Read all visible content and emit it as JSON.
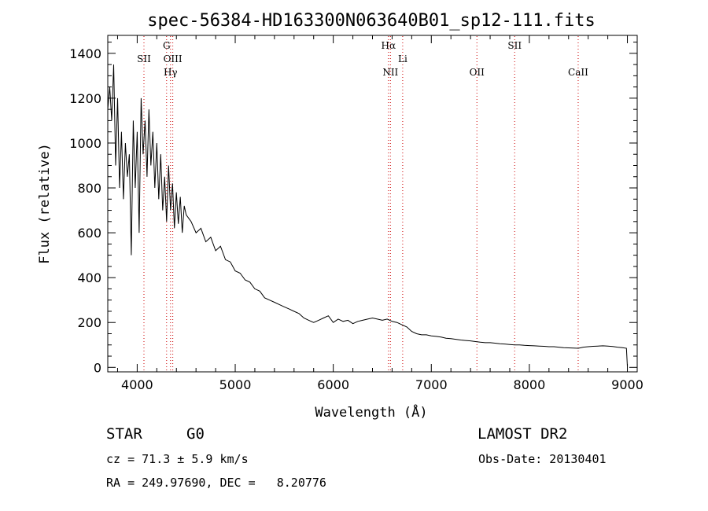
{
  "chart_data": {
    "type": "line",
    "title": "spec-56384-HD163300N063640B01_sp12-111.fits",
    "xlabel": "Wavelength (Å)",
    "ylabel": "Flux (relative)",
    "xlim": [
      3700,
      9100
    ],
    "ylim": [
      -20,
      1480
    ],
    "xticks": [
      4000,
      5000,
      6000,
      7000,
      8000,
      9000
    ],
    "yticks": [
      0,
      200,
      400,
      600,
      800,
      1000,
      1200,
      1400
    ],
    "grid": false,
    "line_color": "#000000",
    "marker_color": "#cc0000",
    "series": [
      {
        "x": [
          3700,
          3720,
          3740,
          3760,
          3780,
          3800,
          3820,
          3840,
          3860,
          3880,
          3900,
          3920,
          3940,
          3960,
          3980,
          4000,
          4020,
          4040,
          4060,
          4080,
          4100,
          4120,
          4140,
          4160,
          4180,
          4200,
          4220,
          4240,
          4260,
          4280,
          4300,
          4320,
          4340,
          4360,
          4380,
          4400,
          4420,
          4440,
          4460,
          4480,
          4500,
          4550,
          4600,
          4650,
          4700,
          4750,
          4800,
          4850,
          4900,
          4950,
          5000,
          5050,
          5100,
          5150,
          5200,
          5250,
          5300,
          5350,
          5400,
          5450,
          5500,
          5550,
          5600,
          5650,
          5700,
          5750,
          5800,
          5850,
          5900,
          5950,
          6000,
          6050,
          6100,
          6150,
          6200,
          6250,
          6300,
          6350,
          6400,
          6450,
          6500,
          6550,
          6600,
          6650,
          6700,
          6750,
          6800,
          6850,
          6900,
          6950,
          7000,
          7050,
          7100,
          7150,
          7200,
          7250,
          7300,
          7350,
          7400,
          7450,
          7500,
          7550,
          7600,
          7650,
          7700,
          7750,
          7800,
          7850,
          7900,
          7950,
          8000,
          8050,
          8100,
          8150,
          8200,
          8250,
          8300,
          8350,
          8400,
          8450,
          8500,
          8550,
          8600,
          8650,
          8700,
          8750,
          8800,
          8850,
          8900,
          8950,
          8990,
          9000
        ],
        "y": [
          1150,
          1250,
          1100,
          1350,
          900,
          1200,
          800,
          1050,
          750,
          1000,
          850,
          950,
          500,
          1100,
          800,
          1050,
          600,
          1200,
          950,
          1100,
          850,
          1150,
          900,
          1050,
          800,
          1000,
          750,
          950,
          700,
          850,
          650,
          900,
          700,
          820,
          620,
          780,
          640,
          760,
          600,
          720,
          680,
          650,
          600,
          620,
          560,
          580,
          520,
          540,
          480,
          470,
          430,
          420,
          390,
          380,
          350,
          340,
          310,
          300,
          290,
          280,
          270,
          260,
          250,
          240,
          220,
          210,
          200,
          210,
          220,
          230,
          200,
          215,
          205,
          210,
          195,
          205,
          210,
          215,
          220,
          215,
          210,
          215,
          205,
          200,
          190,
          180,
          160,
          150,
          145,
          145,
          140,
          138,
          135,
          130,
          128,
          125,
          122,
          120,
          118,
          115,
          112,
          110,
          110,
          108,
          105,
          104,
          102,
          100,
          100,
          98,
          97,
          96,
          95,
          94,
          92,
          92,
          90,
          88,
          87,
          86,
          85,
          90,
          92,
          94,
          95,
          96,
          95,
          93,
          90,
          88,
          85,
          5
        ]
      }
    ],
    "spectral_lines": [
      {
        "x": 4069,
        "label": "SII",
        "row": 1
      },
      {
        "x": 4300,
        "label": "G",
        "row": 0
      },
      {
        "x": 4340,
        "label": "Hγ",
        "row": 2
      },
      {
        "x": 4363,
        "label": "OIII",
        "row": 1
      },
      {
        "x": 6563,
        "label": "Hα",
        "row": 0
      },
      {
        "x": 6583,
        "label": "NII",
        "row": 2
      },
      {
        "x": 6708,
        "label": "Li",
        "row": 1
      },
      {
        "x": 7465,
        "label": "OII",
        "row": 2
      },
      {
        "x": 7850,
        "label": "SII",
        "row": 0
      },
      {
        "x": 8498,
        "label": "CaII",
        "row": 2
      }
    ]
  },
  "info": {
    "class": "STAR",
    "subclass": "G0",
    "survey": "LAMOST DR2",
    "cz": "cz = 71.3 ± 5.9 km/s",
    "obs_date": "Obs-Date: 20130401",
    "radec": "RA = 249.97690, DEC =   8.20776"
  }
}
